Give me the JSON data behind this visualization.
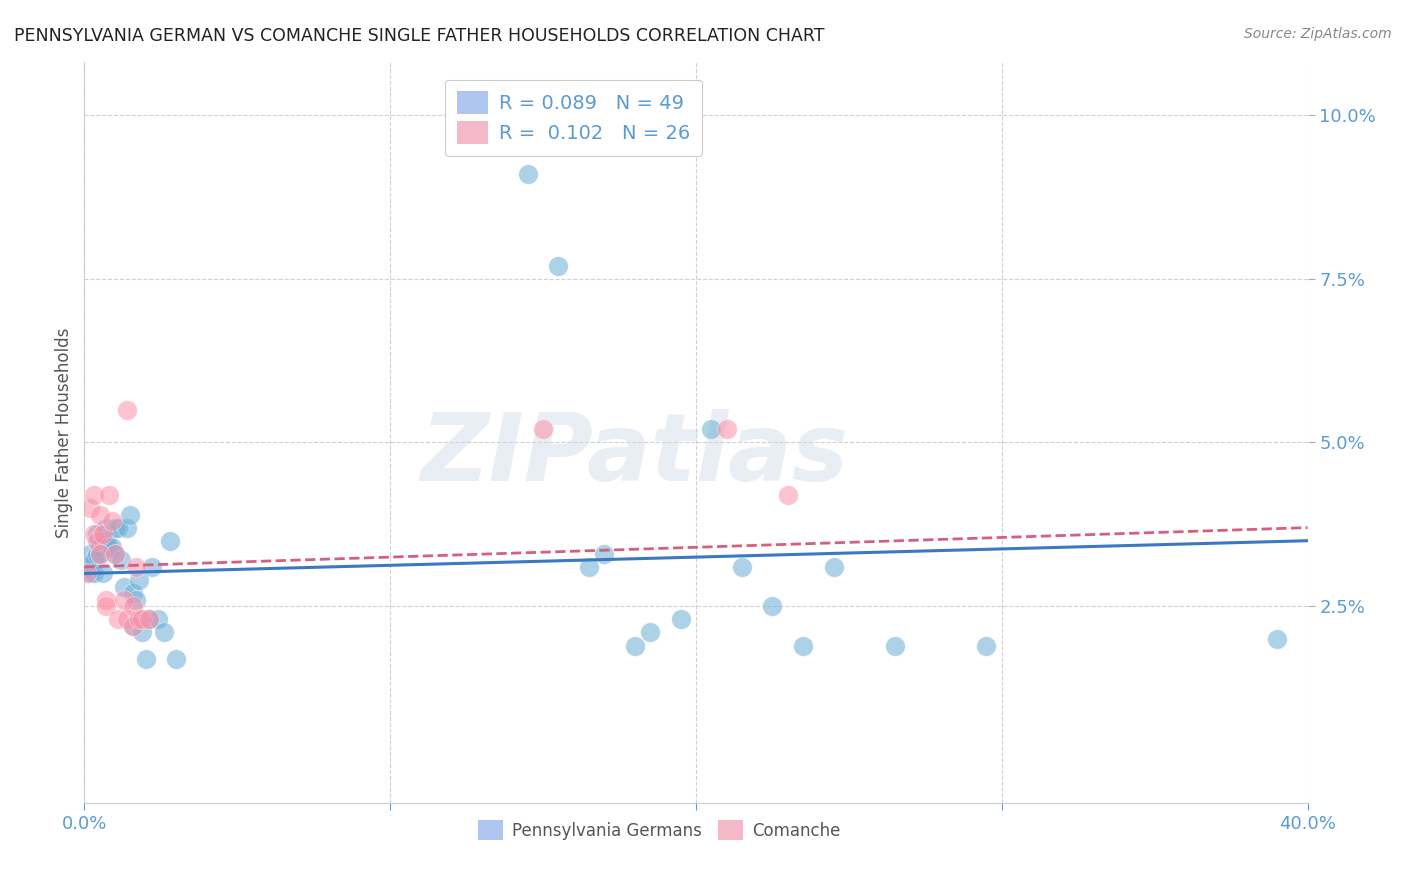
{
  "title": "PENNSYLVANIA GERMAN VS COMANCHE SINGLE FATHER HOUSEHOLDS CORRELATION CHART",
  "source": "Source: ZipAtlas.com",
  "ylabel": "Single Father Households",
  "xlim": [
    0.0,
    0.4
  ],
  "ylim": [
    -0.005,
    0.108
  ],
  "xtick_positions": [
    0.0,
    0.4
  ],
  "xticklabels": [
    "0.0%",
    "40.0%"
  ],
  "ytick_positions": [
    0.025,
    0.05,
    0.075,
    0.1
  ],
  "yticklabels": [
    "2.5%",
    "5.0%",
    "7.5%",
    "10.0%"
  ],
  "blue_scatter_color": "#6baed6",
  "pink_scatter_color": "#fc8fa8",
  "line_blue_color": "#3b78c4",
  "line_pink_color": "#d46080",
  "watermark_text": "ZIPatlas",
  "legend_top_labels": [
    "R = 0.089   N = 49",
    "R =  0.102   N = 26"
  ],
  "legend_top_colors": [
    "#aec6f0",
    "#f4b8c8"
  ],
  "legend_bottom_labels": [
    "Pennsylvania Germans",
    "Comanche"
  ],
  "legend_bottom_colors": [
    "#aec6f0",
    "#f4b8c8"
  ],
  "pg_line_x": [
    0.0,
    0.4
  ],
  "pg_line_y": [
    0.03,
    0.035
  ],
  "cm_line_x": [
    0.0,
    0.4
  ],
  "cm_line_y": [
    0.031,
    0.037
  ],
  "pg_scatter": [
    [
      0.001,
      0.031
    ],
    [
      0.002,
      0.03
    ],
    [
      0.002,
      0.033
    ],
    [
      0.003,
      0.03
    ],
    [
      0.003,
      0.032
    ],
    [
      0.004,
      0.033
    ],
    [
      0.004,
      0.036
    ],
    [
      0.005,
      0.034
    ],
    [
      0.005,
      0.033
    ],
    [
      0.006,
      0.035
    ],
    [
      0.006,
      0.03
    ],
    [
      0.007,
      0.035
    ],
    [
      0.007,
      0.037
    ],
    [
      0.008,
      0.034
    ],
    [
      0.009,
      0.034
    ],
    [
      0.01,
      0.037
    ],
    [
      0.01,
      0.033
    ],
    [
      0.011,
      0.037
    ],
    [
      0.012,
      0.032
    ],
    [
      0.013,
      0.028
    ],
    [
      0.014,
      0.037
    ],
    [
      0.015,
      0.039
    ],
    [
      0.016,
      0.027
    ],
    [
      0.016,
      0.022
    ],
    [
      0.017,
      0.026
    ],
    [
      0.018,
      0.029
    ],
    [
      0.019,
      0.021
    ],
    [
      0.02,
      0.017
    ],
    [
      0.021,
      0.023
    ],
    [
      0.022,
      0.031
    ],
    [
      0.024,
      0.023
    ],
    [
      0.026,
      0.021
    ],
    [
      0.028,
      0.035
    ],
    [
      0.03,
      0.017
    ],
    [
      0.145,
      0.091
    ],
    [
      0.155,
      0.077
    ],
    [
      0.165,
      0.031
    ],
    [
      0.17,
      0.033
    ],
    [
      0.18,
      0.019
    ],
    [
      0.185,
      0.021
    ],
    [
      0.195,
      0.023
    ],
    [
      0.205,
      0.052
    ],
    [
      0.215,
      0.031
    ],
    [
      0.225,
      0.025
    ],
    [
      0.235,
      0.019
    ],
    [
      0.245,
      0.031
    ],
    [
      0.265,
      0.019
    ],
    [
      0.295,
      0.019
    ],
    [
      0.39,
      0.02
    ]
  ],
  "cm_scatter": [
    [
      0.001,
      0.03
    ],
    [
      0.002,
      0.04
    ],
    [
      0.003,
      0.036
    ],
    [
      0.003,
      0.042
    ],
    [
      0.004,
      0.035
    ],
    [
      0.005,
      0.033
    ],
    [
      0.005,
      0.039
    ],
    [
      0.006,
      0.036
    ],
    [
      0.007,
      0.026
    ],
    [
      0.007,
      0.025
    ],
    [
      0.008,
      0.042
    ],
    [
      0.009,
      0.038
    ],
    [
      0.01,
      0.033
    ],
    [
      0.011,
      0.023
    ],
    [
      0.013,
      0.026
    ],
    [
      0.014,
      0.023
    ],
    [
      0.014,
      0.055
    ],
    [
      0.016,
      0.025
    ],
    [
      0.016,
      0.022
    ],
    [
      0.017,
      0.031
    ],
    [
      0.018,
      0.023
    ],
    [
      0.019,
      0.023
    ],
    [
      0.021,
      0.023
    ],
    [
      0.15,
      0.052
    ],
    [
      0.21,
      0.052
    ],
    [
      0.23,
      0.042
    ]
  ]
}
